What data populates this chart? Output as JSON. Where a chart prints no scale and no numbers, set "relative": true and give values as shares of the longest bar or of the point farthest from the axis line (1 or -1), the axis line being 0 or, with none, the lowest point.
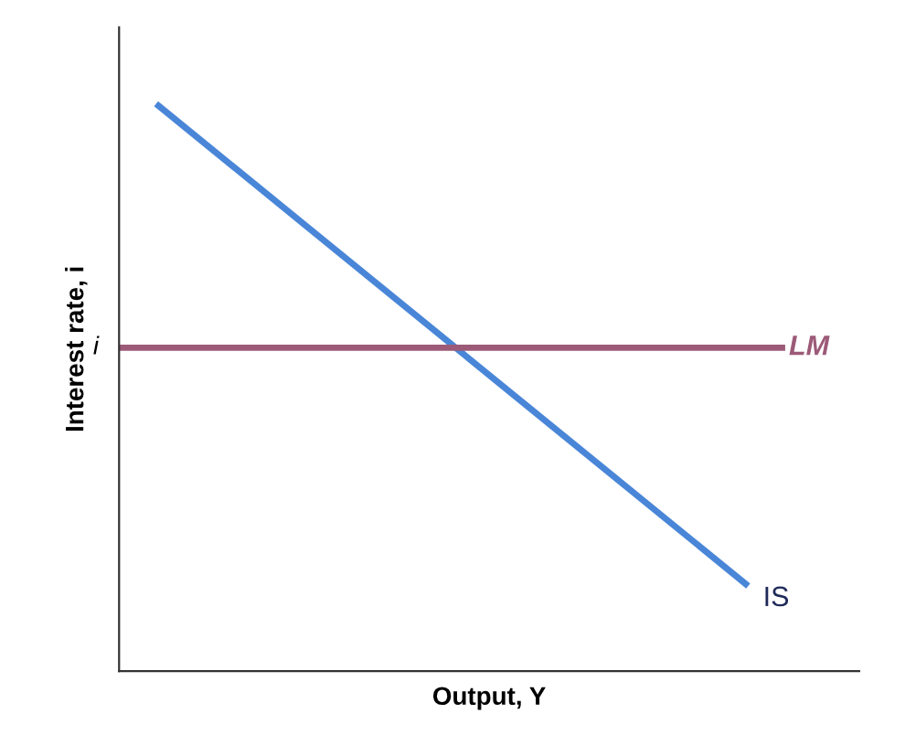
{
  "chart_data": {
    "type": "line",
    "relative": true,
    "xlabel": "Output, Y",
    "ylabel": "Interest rate, i",
    "categories": [
      null,
      null,
      null,
      null,
      null,
      null,
      null,
      null,
      null,
      null,
      null,
      null,
      null,
      null,
      null,
      null,
      null,
      null,
      null,
      null,
      null
    ],
    "series": [
      {
        "name": "IS",
        "color": "#4a86d8",
        "values": [
          null,
          1,
          null,
          null,
          null,
          null,
          null,
          null,
          null,
          null,
          null,
          null,
          null,
          null,
          null,
          null,
          null,
          0.15,
          null,
          null,
          null
        ]
      },
      {
        "name": "LM",
        "color": "#9c5a78",
        "values": [
          0.57,
          null,
          null,
          null,
          null,
          null,
          null,
          null,
          null,
          null,
          null,
          null,
          null,
          null,
          null,
          null,
          null,
          null,
          0.57,
          null,
          null
        ]
      }
    ],
    "annotations": [
      "i"
    ],
    "legend": false,
    "marker": "none",
    "line_style": "solid"
  }
}
